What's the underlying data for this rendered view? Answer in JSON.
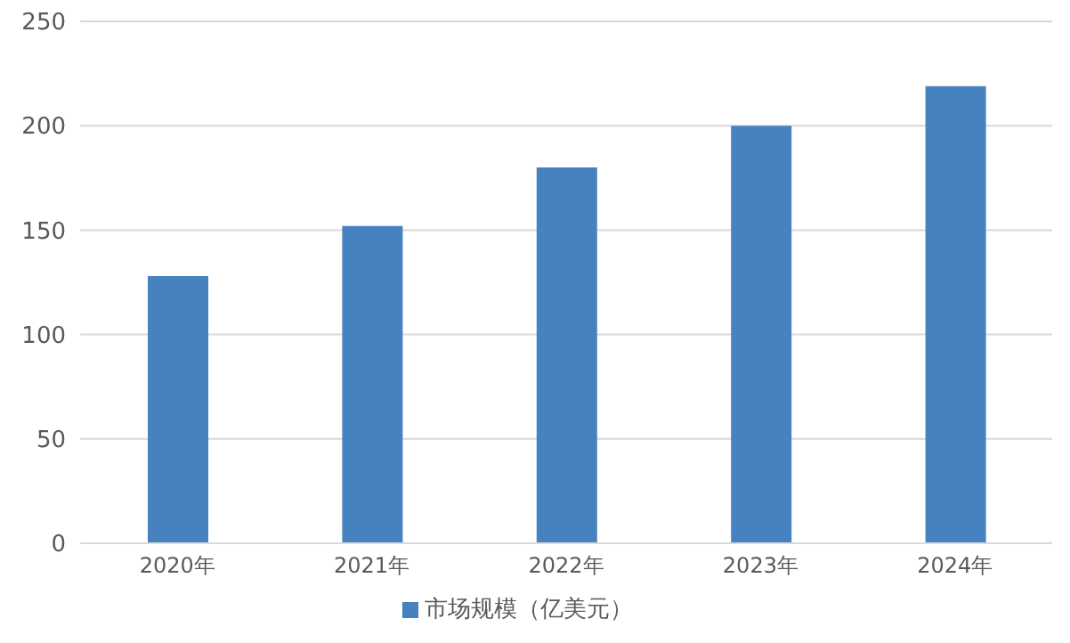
{
  "chart_data": {
    "type": "bar",
    "categories": [
      "2020年",
      "2021年",
      "2022年",
      "2023年",
      "2024年"
    ],
    "series": [
      {
        "name": "市场规模（亿美元）",
        "color": "#4682c0",
        "values": [
          128,
          152,
          180,
          200,
          219
        ]
      }
    ],
    "ylim": [
      0,
      250
    ],
    "yticks": [
      0,
      50,
      100,
      150,
      200,
      250
    ],
    "grid": "y",
    "legend": "bottom"
  }
}
